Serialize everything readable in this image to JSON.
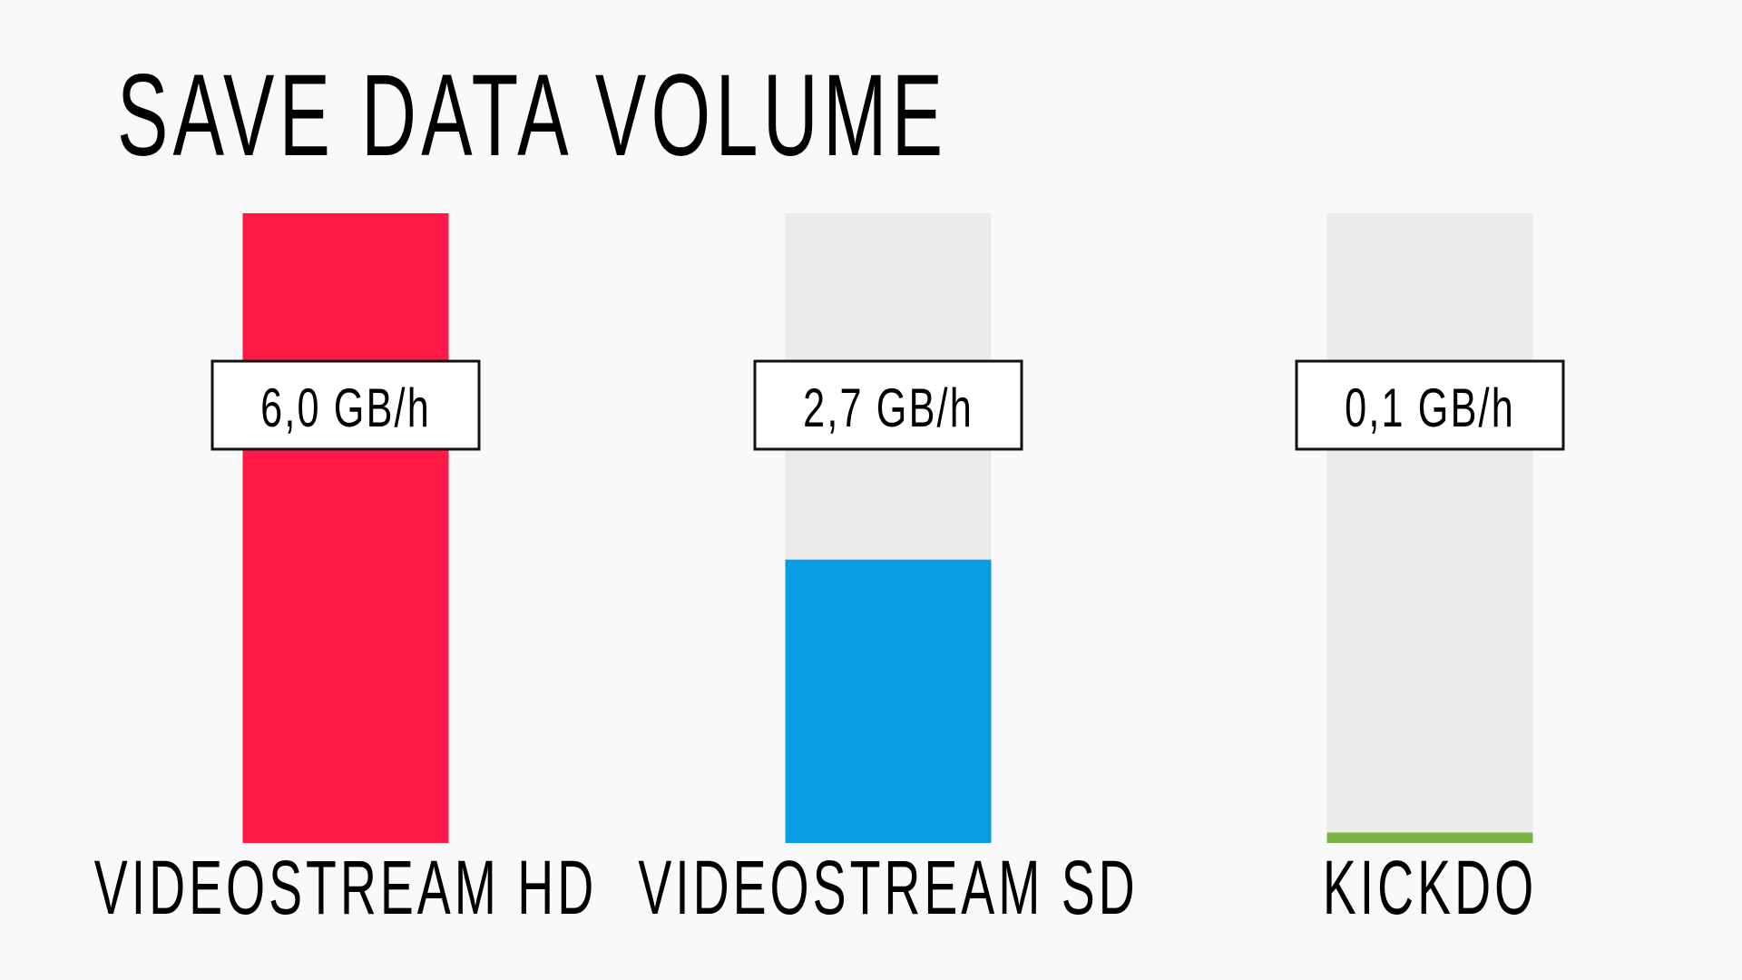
{
  "chart_data": {
    "type": "bar",
    "title": "SAVE DATA VOLUME",
    "categories": [
      "VIDEOSTREAM HD",
      "VIDEOSTREAM SD",
      "KICKDO"
    ],
    "values": [
      6.0,
      2.7,
      0.1
    ],
    "value_labels": [
      "6,0 GB/h",
      "2,7 GB/h",
      "0,1 GB/h"
    ],
    "colors": [
      "#ff1a45",
      "#069de3",
      "#7db343"
    ],
    "ylim": [
      0,
      6
    ]
  }
}
